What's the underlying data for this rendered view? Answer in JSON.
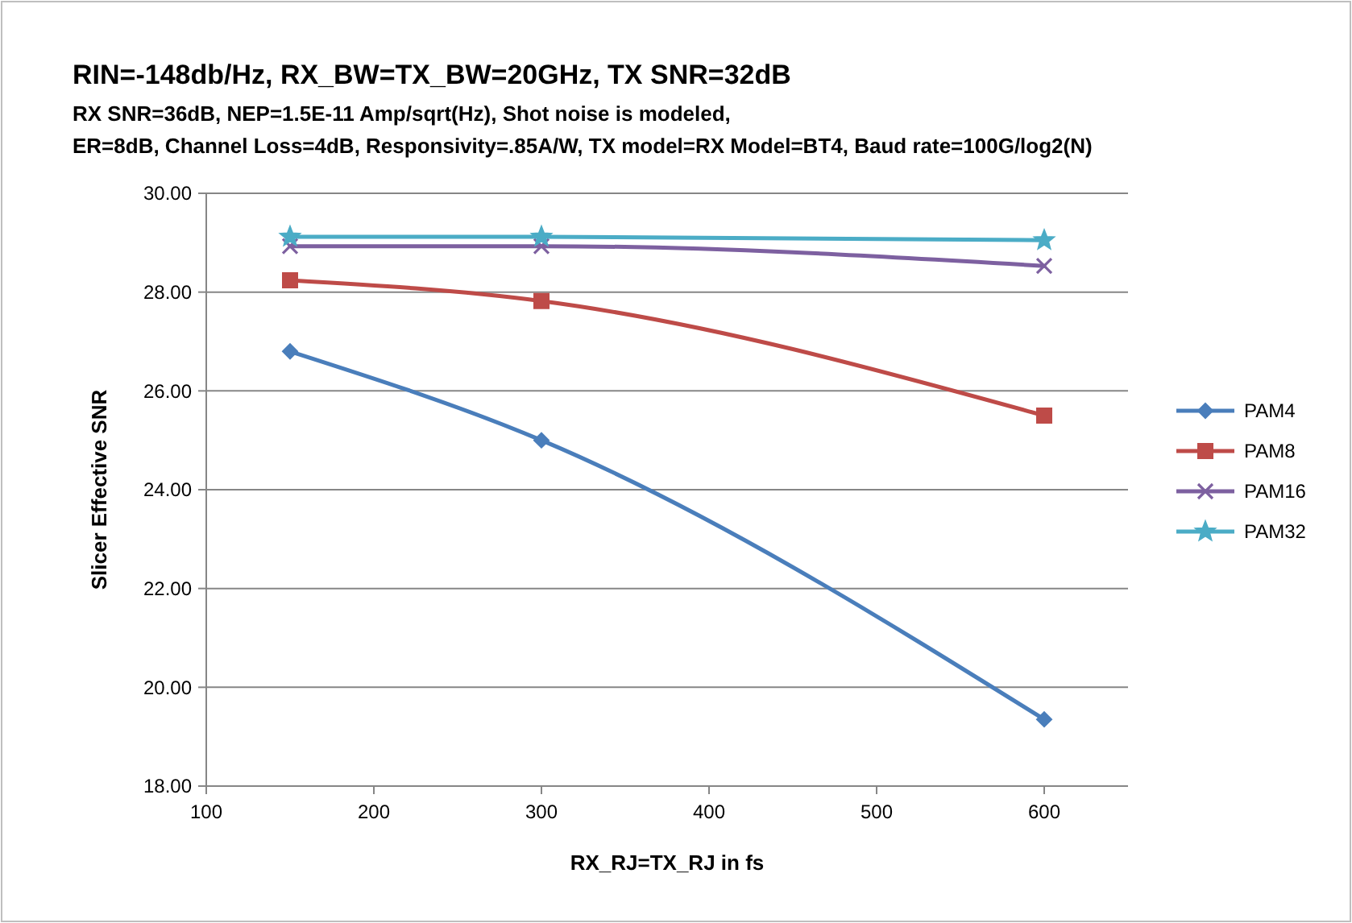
{
  "chart_data": {
    "type": "line",
    "title": "RIN=-148db/Hz, RX_BW=TX_BW=20GHz,  TX SNR=32dB",
    "subtitle": "RX  SNR=36dB, NEP=1.5E-11 Amp/sqrt(Hz), Shot noise is modeled,\nER=8dB, Channel Loss=4dB, Responsivity=.85A/W, TX model=RX Model=BT4, Baud rate=100G/log2(N)",
    "xlabel": "RX_RJ=TX_RJ in fs",
    "ylabel": "Slicer Effective SNR",
    "x": [
      150,
      300,
      600
    ],
    "series": [
      {
        "name": "PAM4",
        "color": "#4a7ebb",
        "marker": "diamond",
        "values": [
          26.8,
          25.0,
          19.35
        ]
      },
      {
        "name": "PAM8",
        "color": "#be4b48",
        "marker": "square",
        "values": [
          28.24,
          27.82,
          25.5
        ]
      },
      {
        "name": "PAM16",
        "color": "#7d60a0",
        "marker": "cross",
        "values": [
          28.93,
          28.93,
          28.53
        ]
      },
      {
        "name": "PAM32",
        "color": "#4bacc6",
        "marker": "star",
        "values": [
          29.12,
          29.12,
          29.05
        ]
      }
    ],
    "xlim": [
      100,
      650
    ],
    "xticks": [
      100,
      200,
      300,
      400,
      500,
      600
    ],
    "ylim": [
      18,
      30
    ],
    "yticks": [
      {
        "value": 18,
        "label": "18.00"
      },
      {
        "value": 20,
        "label": "20.00"
      },
      {
        "value": 22,
        "label": "22.00"
      },
      {
        "value": 24,
        "label": "24.00"
      },
      {
        "value": 26,
        "label": "26.00"
      },
      {
        "value": 28,
        "label": "28.00"
      },
      {
        "value": 30,
        "label": "30.00"
      }
    ],
    "grid": "y",
    "legend": "right",
    "line_style": "solid"
  }
}
